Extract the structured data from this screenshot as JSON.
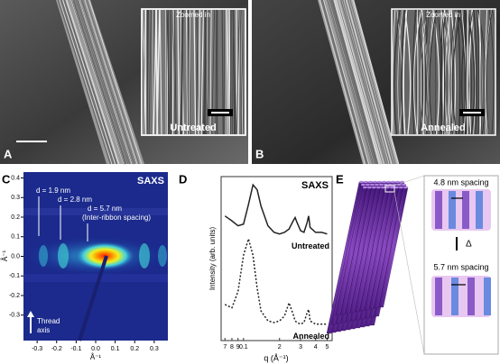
{
  "panels": {
    "a": {
      "letter": "A",
      "inset_title": "Zoomed in",
      "caption": "Untreated"
    },
    "b": {
      "letter": "B",
      "inset_title": "Zoomed in",
      "caption": "Annealed"
    },
    "c": {
      "letter": "C",
      "title": "SAXS",
      "xlabel": "Å⁻¹",
      "ylabel": "Å⁻¹",
      "xlim": [
        -0.37,
        0.37
      ],
      "ylim": [
        -0.43,
        0.43
      ],
      "xticks": [
        -0.3,
        -0.2,
        -0.1,
        {
          "value": 0,
          "label": "0.0"
        },
        0.1,
        0.2,
        0.3
      ],
      "yticks": [
        0.4,
        0.3,
        0.2,
        0.1,
        {
          "value": 0,
          "label": "0.0"
        },
        -0.1,
        -0.2,
        -0.3
      ],
      "annotations": [
        "d = 1.9 nm",
        "d = 2.8 nm",
        "d = 5.7 nm",
        "(Inter-ribbon spacing)",
        "Thread",
        "axis"
      ]
    },
    "e": {
      "letter": "E",
      "top": "4.8 nm spacing",
      "delta": "Δ",
      "bottom": "5.7 nm spacing"
    }
  },
  "chart_data": {
    "type": "line",
    "letter": "D",
    "title": "SAXS",
    "xlabel": "q (Å⁻¹)",
    "ylabel": "Intensity (arb. units)",
    "xlog": true,
    "xlim": [
      0.065,
      0.55
    ],
    "ylim": [
      0,
      10
    ],
    "xticks": [
      {
        "value": 0.07,
        "label": "7"
      },
      {
        "value": 0.08,
        "label": "8"
      },
      {
        "value": 0.09,
        "label": "9"
      },
      0.1,
      {
        "value": 0.2,
        "label": "2"
      },
      {
        "value": 0.3,
        "label": "3"
      },
      {
        "value": 0.4,
        "label": "4"
      },
      {
        "value": 0.5,
        "label": "5"
      }
    ],
    "x": [
      0.07,
      0.08,
      0.09,
      0.1,
      0.11,
      0.12,
      0.13,
      0.14,
      0.16,
      0.18,
      0.2,
      0.22,
      0.24,
      0.26,
      0.27,
      0.28,
      0.3,
      0.32,
      0.34,
      0.35,
      0.36,
      0.4,
      0.45,
      0.5
    ],
    "series": [
      {
        "name": "Untreated",
        "color": "#222222",
        "dash": false,
        "values": [
          7.6,
          7.3,
          7.0,
          7.1,
          8.3,
          9.5,
          9.2,
          8.2,
          7.0,
          6.6,
          6.5,
          6.6,
          6.8,
          7.3,
          7.5,
          7.2,
          6.7,
          6.6,
          7.2,
          7.6,
          6.9,
          6.6,
          6.6,
          6.5
        ]
      },
      {
        "name": "Annealed",
        "color": "#222222",
        "dash": true,
        "values": [
          2.2,
          2.0,
          3.0,
          5.2,
          6.2,
          5.2,
          3.2,
          1.8,
          1.2,
          1.1,
          1.2,
          1.5,
          2.3,
          1.6,
          1.2,
          1.1,
          1.0,
          1.1,
          1.7,
          1.9,
          1.2,
          1.0,
          1.0,
          1.0
        ]
      }
    ]
  }
}
